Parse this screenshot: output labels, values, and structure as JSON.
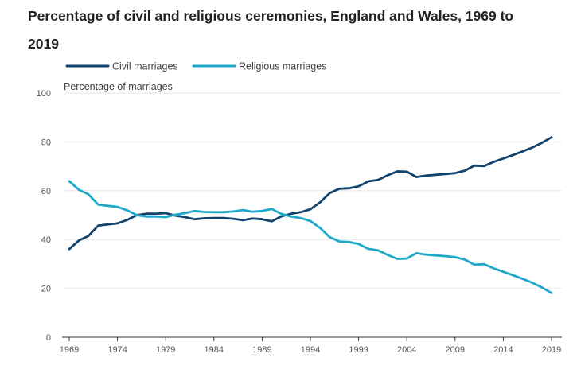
{
  "chart_data": {
    "type": "line",
    "title": "Percentage of civil and religious ceremonies, England and Wales, 1969 to 2019",
    "ylabel": "Percentage of marriages",
    "xlabel": "",
    "ylim": [
      0,
      100
    ],
    "yticks": [
      0,
      20,
      40,
      60,
      80,
      100
    ],
    "xtick_labels": [
      "1969",
      "1974",
      "1979",
      "1984",
      "1989",
      "1994",
      "1999",
      "2004",
      "2009",
      "2014",
      "2019"
    ],
    "legend_position": "top-left",
    "x": [
      1969,
      1970,
      1971,
      1972,
      1973,
      1974,
      1975,
      1976,
      1977,
      1978,
      1979,
      1980,
      1981,
      1982,
      1983,
      1984,
      1985,
      1986,
      1987,
      1988,
      1989,
      1990,
      1991,
      1992,
      1993,
      1994,
      1995,
      1996,
      1997,
      1998,
      1999,
      2000,
      2001,
      2002,
      2003,
      2004,
      2005,
      2006,
      2007,
      2008,
      2009,
      2010,
      2011,
      2012,
      2013,
      2014,
      2015,
      2016,
      2017,
      2018,
      2019
    ],
    "series": [
      {
        "name": "Civil marriages",
        "color": "#12436d",
        "values": [
          36.1,
          39.6,
          41.5,
          45.7,
          46.2,
          46.6,
          48.0,
          50.0,
          50.6,
          50.6,
          50.8,
          49.8,
          49.2,
          48.3,
          48.7,
          48.8,
          48.8,
          48.5,
          47.9,
          48.6,
          48.3,
          47.5,
          49.5,
          50.6,
          51.2,
          52.4,
          55.2,
          59.0,
          60.8,
          61.0,
          61.8,
          63.8,
          64.4,
          66.3,
          67.9,
          67.8,
          65.6,
          66.2,
          66.5,
          66.8,
          67.2,
          68.2,
          70.3,
          70.1,
          71.8,
          73.2,
          74.6,
          76.1,
          77.7,
          79.6,
          81.9
        ]
      },
      {
        "name": "Religious marriages",
        "color": "#1fa8c9",
        "values": [
          63.9,
          60.4,
          58.5,
          54.3,
          53.8,
          53.4,
          52.0,
          50.0,
          49.4,
          49.4,
          49.2,
          50.2,
          50.8,
          51.7,
          51.3,
          51.2,
          51.2,
          51.5,
          52.1,
          51.4,
          51.7,
          52.5,
          50.5,
          49.4,
          48.8,
          47.6,
          44.8,
          41.0,
          39.2,
          39.0,
          38.2,
          36.2,
          35.6,
          33.7,
          32.1,
          32.2,
          34.4,
          33.8,
          33.5,
          33.2,
          32.8,
          31.8,
          29.7,
          29.9,
          28.2,
          26.8,
          25.4,
          23.9,
          22.3,
          20.4,
          18.1
        ]
      }
    ]
  }
}
